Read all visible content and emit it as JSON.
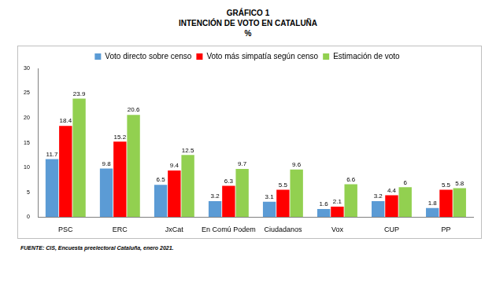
{
  "chart_data": {
    "type": "bar",
    "title": [
      "GRÁFICO 1",
      "INTENCIÓN DE VOTO EN CATALUÑA"
    ],
    "subtitle": "%",
    "categories": [
      "PSC",
      "ERC",
      "JxCat",
      "En Comú Podem",
      "Ciudadanos",
      "Vox",
      "CUP",
      "PP"
    ],
    "series": [
      {
        "name": "Voto directo sobre censo",
        "color": "#5b9bd5",
        "values": [
          11.7,
          9.8,
          6.5,
          3.2,
          3.1,
          1.6,
          3.2,
          1.8
        ]
      },
      {
        "name": "Voto más simpatía según censo",
        "color": "#ff0000",
        "values": [
          18.4,
          15.2,
          9.4,
          6.3,
          5.5,
          2.1,
          4.4,
          5.5
        ]
      },
      {
        "name": "Estimación de voto",
        "color": "#92d050",
        "values": [
          23.9,
          20.6,
          12.5,
          9.7,
          9.6,
          6.6,
          6,
          5.8
        ]
      }
    ],
    "ylim": [
      0,
      30
    ],
    "yticks": [
      0,
      5,
      10,
      15,
      20,
      25,
      30
    ],
    "grid": false,
    "legend": "top",
    "data_labels": true,
    "annotations": [
      "FUENTE: CIS, Encuesta preelectoral Cataluña, enero 2021."
    ]
  }
}
